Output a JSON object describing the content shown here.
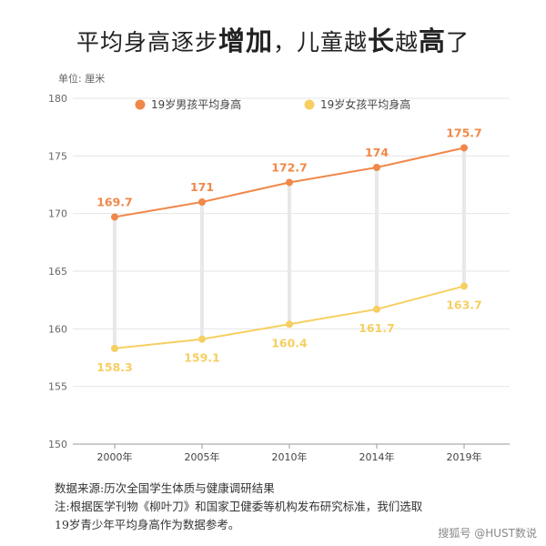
{
  "title": {
    "part1": "平均身高逐步",
    "part2": "增加",
    "part3": "，儿童越",
    "part4": "长",
    "part5": "越",
    "part6": "高",
    "part7": "了"
  },
  "unit_label": "单位: 厘米",
  "source": {
    "line1": "数据来源:历次全国学生体质与健康调研结果",
    "line2": "注:根据医学刊物《柳叶刀》和国家卫健委等机构发布研究标准，我们选取",
    "line3": "19岁青少年平均身高作为数据参考。"
  },
  "watermark": "搜狐号 @HUST数说",
  "colors": {
    "boys": "#f0884a",
    "girls": "#f6cf62",
    "connector": "#e8e8e8",
    "grid": "#e6e6e6"
  },
  "chart_data": {
    "type": "line",
    "categories": [
      "2000年",
      "2005年",
      "2010年",
      "2014年",
      "2019年"
    ],
    "yticks": [
      150,
      155,
      160,
      165,
      170,
      175,
      180
    ],
    "ylim": [
      150,
      180
    ],
    "legend_position": "top",
    "series": [
      {
        "name": "19岁男孩平均身高",
        "values": [
          169.7,
          171,
          172.7,
          174,
          175.7
        ],
        "labels": [
          "169.7",
          "171",
          "172.7",
          "174",
          "175.7"
        ]
      },
      {
        "name": "19岁女孩平均身高",
        "values": [
          158.3,
          159.1,
          160.4,
          161.7,
          163.7
        ],
        "labels": [
          "158.3",
          "159.1",
          "160.4",
          "161.7",
          "163.7"
        ]
      }
    ]
  }
}
